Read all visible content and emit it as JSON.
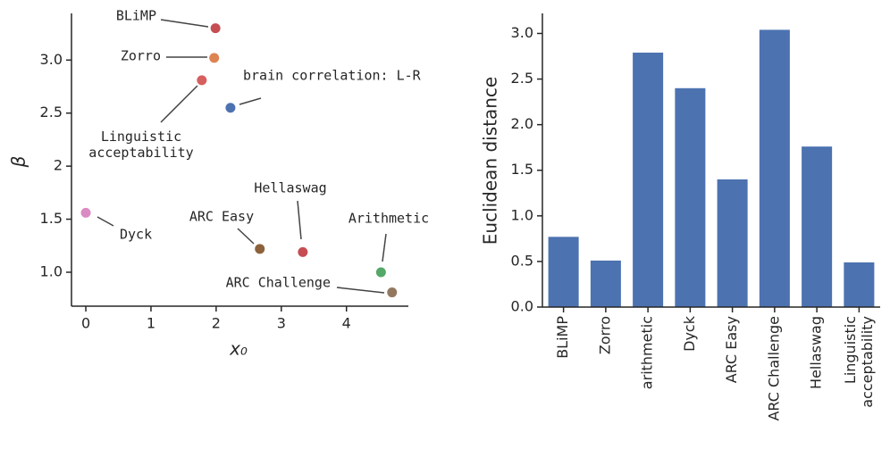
{
  "chart_data": [
    {
      "type": "scatter",
      "xlabel": "x₀",
      "ylabel": "β",
      "labels": [
        "BLiMP",
        "Zorro",
        "brain correlation: L-R",
        "Linguistic\nacceptability",
        "Dyck",
        "ARC Easy",
        "Hellaswag",
        "Arithmetic",
        "ARC Challenge"
      ],
      "x": [
        1.99,
        1.97,
        2.22,
        1.78,
        0.0,
        2.67,
        3.33,
        4.53,
        4.7
      ],
      "y": [
        3.3,
        3.02,
        2.55,
        2.81,
        1.56,
        1.22,
        1.19,
        1.0,
        0.81
      ],
      "colors": [
        "#c44e52",
        "#dd8452",
        "#4c72b0",
        "#d65f5f",
        "#da8bc3",
        "#8c613c",
        "#c44e52",
        "#55a868",
        "#937860"
      ],
      "xlim": [
        -0.22,
        4.95
      ],
      "xticks": [
        0,
        1,
        2,
        3,
        4
      ],
      "ylim": [
        0.68,
        3.44
      ],
      "yticks": [
        {
          "value": 1,
          "label": "1.0"
        },
        1.5,
        2,
        2.5,
        {
          "value": 3,
          "label": "3.0"
        }
      ]
    },
    {
      "type": "bar",
      "ylabel": "Euclidean distance",
      "categories": [
        "BLiMP",
        "Zorro",
        "arithmetic",
        "Dyck",
        "ARC Easy",
        "ARC Challenge",
        "Hellaswag",
        "Linguistic\nacceptability"
      ],
      "values": [
        0.77,
        0.51,
        2.79,
        2.4,
        1.4,
        3.04,
        1.76,
        0.49
      ],
      "color": "#4c72b0",
      "ylim": [
        0,
        3.22
      ],
      "yticks": [
        {
          "value": 0,
          "label": "0.0"
        },
        0.5,
        {
          "value": 1,
          "label": "1.0"
        },
        1.5,
        {
          "value": 2,
          "label": "2.0"
        },
        2.5,
        {
          "value": 3,
          "label": "3.0"
        }
      ]
    }
  ]
}
